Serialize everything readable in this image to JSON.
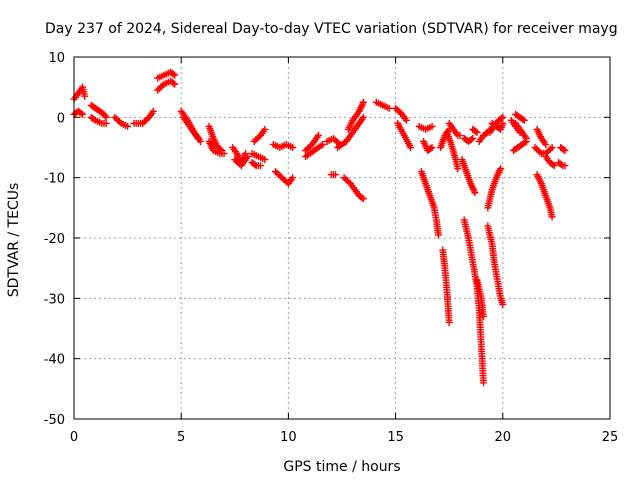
{
  "chart_data": {
    "type": "scatter",
    "title": "Day 237 of 2024, Sidereal Day-to-day VTEC variation (SDTVAR) for receiver mayg",
    "xlabel": "GPS time / hours",
    "ylabel": "SDTVAR / TECUs",
    "xlim": [
      0,
      25
    ],
    "ylim": [
      -50,
      10
    ],
    "xticks": [
      0,
      5,
      10,
      15,
      20,
      25
    ],
    "yticks": [
      10,
      0,
      -10,
      -20,
      -30,
      -40,
      -50
    ],
    "grid": true,
    "marker": "+",
    "colors": {
      "series": "#ff0000",
      "grid": "#a0a0a0",
      "frame": "#000000"
    },
    "segments": [
      {
        "x": [
          0.0,
          0.2,
          0.4,
          0.5
        ],
        "y": [
          3.0,
          4.0,
          5.0,
          3.5
        ]
      },
      {
        "x": [
          0.0,
          0.2,
          0.4
        ],
        "y": [
          0.5,
          1.0,
          0.5
        ]
      },
      {
        "x": [
          0.8,
          1.0,
          1.2,
          1.4,
          1.5
        ],
        "y": [
          2.0,
          1.5,
          1.0,
          0.5,
          0.0
        ]
      },
      {
        "x": [
          0.8,
          1.0,
          1.3,
          1.5
        ],
        "y": [
          0.0,
          -0.5,
          -1.0,
          -1.0
        ]
      },
      {
        "x": [
          1.9,
          2.2,
          2.5
        ],
        "y": [
          0.0,
          -1.0,
          -1.5
        ]
      },
      {
        "x": [
          2.8,
          3.2,
          3.5,
          3.7
        ],
        "y": [
          -1.0,
          -1.0,
          0.0,
          1.0
        ]
      },
      {
        "x": [
          3.9,
          4.2,
          4.5,
          4.7
        ],
        "y": [
          6.5,
          7.0,
          7.5,
          7.0
        ]
      },
      {
        "x": [
          3.9,
          4.2,
          4.5,
          4.7
        ],
        "y": [
          4.5,
          5.5,
          6.0,
          5.5
        ]
      },
      {
        "x": [
          5.0,
          5.3,
          5.6,
          5.8
        ],
        "y": [
          1.0,
          -0.5,
          -2.5,
          -3.5
        ]
      },
      {
        "x": [
          5.1,
          5.4,
          5.7,
          5.9
        ],
        "y": [
          0.0,
          -1.5,
          -3.0,
          -4.0
        ]
      },
      {
        "x": [
          6.3,
          6.5,
          6.7,
          6.9
        ],
        "y": [
          -1.5,
          -3.5,
          -5.0,
          -5.5
        ]
      },
      {
        "x": [
          6.3,
          6.5,
          6.8,
          7.0
        ],
        "y": [
          -4.0,
          -5.5,
          -6.0,
          -6.0
        ]
      },
      {
        "x": [
          7.4,
          7.6,
          7.8,
          8.0
        ],
        "y": [
          -5.0,
          -6.0,
          -7.5,
          -6.0
        ]
      },
      {
        "x": [
          7.5,
          7.8,
          8.1
        ],
        "y": [
          -7.0,
          -8.0,
          -6.5
        ]
      },
      {
        "x": [
          8.4,
          8.7,
          8.9
        ],
        "y": [
          -4.0,
          -3.0,
          -2.0
        ]
      },
      {
        "x": [
          8.3,
          8.6,
          8.9
        ],
        "y": [
          -6.0,
          -6.5,
          -7.0
        ]
      },
      {
        "x": [
          8.3,
          8.5,
          8.7
        ],
        "y": [
          -7.5,
          -8.0,
          -8.0
        ]
      },
      {
        "x": [
          9.3,
          9.6,
          9.9,
          10.2
        ],
        "y": [
          -4.5,
          -5.0,
          -4.5,
          -5.0
        ]
      },
      {
        "x": [
          9.4,
          9.7,
          10.0,
          10.2
        ],
        "y": [
          -9.0,
          -10.0,
          -11.0,
          -10.0
        ]
      },
      {
        "x": [
          10.8,
          11.1,
          11.4
        ],
        "y": [
          -5.5,
          -4.5,
          -3.0
        ]
      },
      {
        "x": [
          10.8,
          11.2,
          11.6
        ],
        "y": [
          -6.5,
          -5.5,
          -4.5
        ]
      },
      {
        "x": [
          11.8,
          12.1,
          12.4
        ],
        "y": [
          -4.0,
          -3.5,
          -4.5
        ]
      },
      {
        "x": [
          12.0,
          12.2
        ],
        "y": [
          -9.5,
          -9.5
        ]
      },
      {
        "x": [
          12.3,
          12.7,
          13.0,
          13.5
        ],
        "y": [
          -5.0,
          -4.0,
          -2.5,
          0.0
        ]
      },
      {
        "x": [
          12.6,
          12.9,
          13.1,
          13.3,
          13.5
        ],
        "y": [
          -10.0,
          -11.0,
          -12.0,
          -13.0,
          -13.5
        ]
      },
      {
        "x": [
          12.8,
          13.0,
          13.3,
          13.5
        ],
        "y": [
          -2.0,
          -0.5,
          1.0,
          2.5
        ]
      },
      {
        "x": [
          14.1,
          14.4,
          14.7
        ],
        "y": [
          2.5,
          2.0,
          1.5
        ]
      },
      {
        "x": [
          15.0,
          15.3,
          15.5
        ],
        "y": [
          1.5,
          0.5,
          -0.5
        ]
      },
      {
        "x": [
          15.1,
          15.4,
          15.7
        ],
        "y": [
          -1.0,
          -3.0,
          -5.0
        ]
      },
      {
        "x": [
          16.1,
          16.4,
          16.7
        ],
        "y": [
          -1.5,
          -2.0,
          -1.5
        ]
      },
      {
        "x": [
          16.3,
          16.5,
          16.7
        ],
        "y": [
          -4.0,
          -5.5,
          -5.0
        ]
      },
      {
        "x": [
          16.2,
          16.4,
          16.6,
          16.8,
          16.9,
          17.0
        ],
        "y": [
          -9.0,
          -11.0,
          -13.0,
          -15.0,
          -17.0,
          -19.5
        ]
      },
      {
        "x": [
          17.2,
          17.3,
          17.4,
          17.5
        ],
        "y": [
          -22.0,
          -25.0,
          -29.0,
          -34.0
        ]
      },
      {
        "x": [
          17.1,
          17.3,
          17.5
        ],
        "y": [
          -5.0,
          -3.0,
          -2.0
        ]
      },
      {
        "x": [
          17.4,
          17.6,
          17.8,
          17.9
        ],
        "y": [
          -2.5,
          -4.5,
          -7.0,
          -8.5
        ]
      },
      {
        "x": [
          17.5,
          17.7,
          17.9,
          18.0
        ],
        "y": [
          -1.0,
          -2.0,
          -3.0,
          -3.0
        ]
      },
      {
        "x": [
          18.1,
          18.3,
          18.5,
          18.7
        ],
        "y": [
          -7.0,
          -9.0,
          -11.0,
          -12.5
        ]
      },
      {
        "x": [
          18.2,
          18.4,
          18.6
        ],
        "y": [
          -3.5,
          -4.0,
          -3.5
        ]
      },
      {
        "x": [
          18.6,
          18.8
        ],
        "y": [
          -2.0,
          -2.5
        ]
      },
      {
        "x": [
          18.2,
          18.4,
          18.6,
          18.8,
          18.9,
          19.0,
          19.1
        ],
        "y": [
          -17.0,
          -20.0,
          -24.0,
          -28.0,
          -32.0,
          -38.0,
          -44.0
        ]
      },
      {
        "x": [
          18.8,
          19.0,
          19.1
        ],
        "y": [
          -27.0,
          -30.0,
          -33.0
        ]
      },
      {
        "x": [
          18.9,
          19.1,
          19.3,
          19.4
        ],
        "y": [
          -4.0,
          -3.0,
          -2.5,
          -2.0
        ]
      },
      {
        "x": [
          19.4,
          19.6,
          19.8,
          20.0
        ],
        "y": [
          -2.5,
          -1.5,
          -0.5,
          0.0
        ]
      },
      {
        "x": [
          19.5,
          19.7,
          19.9,
          20.0
        ],
        "y": [
          -1.0,
          -1.5,
          -2.0,
          -1.0
        ]
      },
      {
        "x": [
          19.3,
          19.5,
          19.6,
          19.7,
          19.8,
          19.9,
          20.0
        ],
        "y": [
          -18.0,
          -21.0,
          -24.0,
          -26.0,
          -28.0,
          -30.0,
          -31.0
        ]
      },
      {
        "x": [
          19.3,
          19.5,
          19.7,
          19.9
        ],
        "y": [
          -15.0,
          -12.0,
          -10.0,
          -8.5
        ]
      },
      {
        "x": [
          20.6,
          20.8,
          21.0
        ],
        "y": [
          0.5,
          0.0,
          -0.5
        ]
      },
      {
        "x": [
          20.6,
          20.8,
          21.0,
          21.1
        ],
        "y": [
          -1.0,
          -2.0,
          -3.0,
          -3.5
        ]
      },
      {
        "x": [
          20.5,
          20.7,
          20.9,
          21.1
        ],
        "y": [
          -5.5,
          -5.0,
          -4.5,
          -4.0
        ]
      },
      {
        "x": [
          20.4,
          20.6,
          20.8
        ],
        "y": [
          -0.5,
          -1.5,
          -2.5
        ]
      },
      {
        "x": [
          21.6,
          21.8,
          22.0
        ],
        "y": [
          -2.0,
          -3.5,
          -4.5
        ]
      },
      {
        "x": [
          21.5,
          21.8,
          22.0,
          22.3
        ],
        "y": [
          -5.0,
          -6.0,
          -6.0,
          -5.0
        ]
      },
      {
        "x": [
          21.6,
          21.8,
          22.0,
          22.2,
          22.3
        ],
        "y": [
          -9.5,
          -11.0,
          -13.0,
          -15.0,
          -16.5
        ]
      },
      {
        "x": [
          22.0,
          22.2,
          22.4
        ],
        "y": [
          -6.5,
          -7.5,
          -8.0
        ]
      },
      {
        "x": [
          22.7,
          22.9
        ],
        "y": [
          -5.0,
          -5.5
        ]
      },
      {
        "x": [
          22.6,
          22.8,
          22.9
        ],
        "y": [
          -7.5,
          -8.0,
          -8.0
        ]
      }
    ]
  }
}
